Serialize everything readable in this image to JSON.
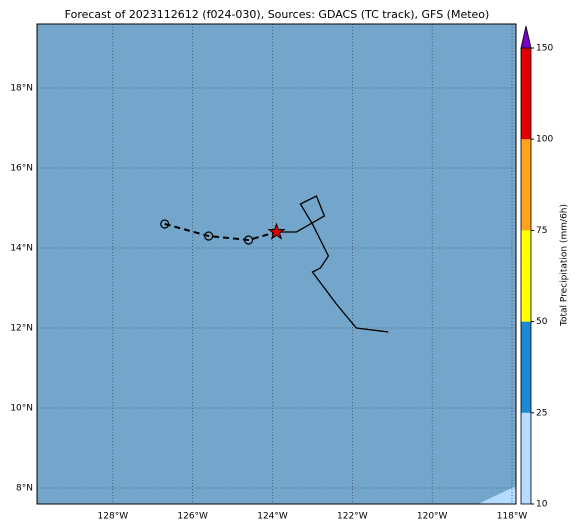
{
  "chart_data": {
    "type": "map",
    "title": "Forecast of 2023112612 (f024-030), Sources: GDACS (TC track), GFS (Meteo)",
    "xlim": [
      -129.9,
      -117.9
    ],
    "ylim": [
      7.6,
      19.6
    ],
    "xticks": [
      {
        "value": -128,
        "label": "128°W"
      },
      {
        "value": -126,
        "label": "126°W"
      },
      {
        "value": -124,
        "label": "124°W"
      },
      {
        "value": -122,
        "label": "122°W"
      },
      {
        "value": -120,
        "label": "120°W"
      },
      {
        "value": -118,
        "label": "118°W"
      }
    ],
    "yticks": [
      {
        "value": 8,
        "label": "8°N"
      },
      {
        "value": 10,
        "label": "10°N"
      },
      {
        "value": 12,
        "label": "12°N"
      },
      {
        "value": 14,
        "label": "14°N"
      },
      {
        "value": 16,
        "label": "16°N"
      },
      {
        "value": 18,
        "label": "18°N"
      }
    ],
    "grid": true,
    "ocean_color": "#74a6cc",
    "track_points": {
      "lon": [
        -126.7,
        -125.6,
        -124.6
      ],
      "lat": [
        14.6,
        14.3,
        14.2
      ]
    },
    "current": {
      "lon": -123.9,
      "lat": 14.4,
      "color": "#e00000"
    },
    "track_line": {
      "lon": [
        -123.9,
        -123.4,
        -122.7,
        -122.9,
        -123.3,
        -123.0,
        -122.6,
        -122.8,
        -123.0,
        -122.4,
        -121.9,
        -121.1
      ],
      "lat": [
        14.4,
        14.4,
        14.8,
        15.3,
        15.1,
        14.6,
        13.8,
        13.5,
        13.4,
        12.6,
        12.0,
        11.9
      ]
    },
    "colorbar": {
      "label": "Total Precipitation (mm/6h)",
      "ticks": [
        10,
        25,
        50,
        75,
        100,
        150
      ],
      "colors": [
        "#b5dcff",
        "#1a8ad4",
        "#ffff00",
        "#ffa21c",
        "#e00000"
      ],
      "extend_color": "#7a00c8"
    }
  }
}
